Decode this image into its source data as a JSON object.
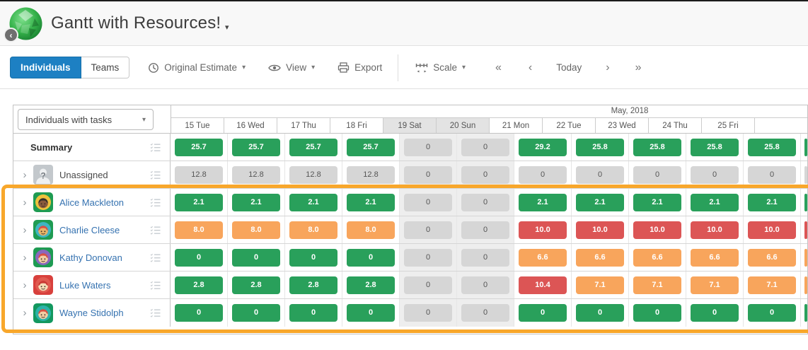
{
  "header": {
    "title": "Gantt with Resources!",
    "collapse_glyph": "‹",
    "title_caret": "▾"
  },
  "toolbar": {
    "view_tabs": [
      {
        "label": "Individuals",
        "active": true
      },
      {
        "label": "Teams",
        "active": false
      }
    ],
    "estimate_label": "Original Estimate",
    "view_label": "View",
    "export_label": "Export",
    "scale_label": "Scale",
    "caret_glyph": "▾",
    "nav": {
      "fast_prev": "«",
      "prev": "‹",
      "today": "Today",
      "next": "›",
      "fast_next": "»"
    }
  },
  "grid": {
    "filter_label": "Individuals with tasks",
    "filter_caret": "▾",
    "month_label": "May, 2018",
    "columns": [
      {
        "label": "15 Tue",
        "weekend": false
      },
      {
        "label": "16 Wed",
        "weekend": false
      },
      {
        "label": "17 Thu",
        "weekend": false
      },
      {
        "label": "18 Fri",
        "weekend": false
      },
      {
        "label": "19 Sat",
        "weekend": true
      },
      {
        "label": "20 Sun",
        "weekend": true
      },
      {
        "label": "21 Mon",
        "weekend": false
      },
      {
        "label": "22 Tue",
        "weekend": false
      },
      {
        "label": "23 Wed",
        "weekend": false
      },
      {
        "label": "24 Thu",
        "weekend": false
      },
      {
        "label": "25 Fri",
        "weekend": false
      }
    ],
    "colors": {
      "green": "#29a05b",
      "orange": "#f8a55c",
      "red": "#dc5555",
      "gray": "#d6d6d6",
      "highlight_border": "#f8a72b",
      "active_tab_blue": "#1d80c3"
    },
    "rows": [
      {
        "name": "Summary",
        "type": "summary",
        "highlighted": false,
        "cells": [
          [
            "25.7",
            "green"
          ],
          [
            "25.7",
            "green"
          ],
          [
            "25.7",
            "green"
          ],
          [
            "25.7",
            "green"
          ],
          [
            "0",
            "gray"
          ],
          [
            "0",
            "gray"
          ],
          [
            "29.2",
            "green"
          ],
          [
            "25.8",
            "green"
          ],
          [
            "25.8",
            "green"
          ],
          [
            "25.8",
            "green"
          ],
          [
            "25.8",
            "green"
          ]
        ],
        "edge_color": "green"
      },
      {
        "name": "Unassigned",
        "type": "unassigned",
        "highlighted": false,
        "avatar": {
          "unknown": true,
          "square": "#c3c8cc"
        },
        "cells": [
          [
            "12.8",
            "gray"
          ],
          [
            "12.8",
            "gray"
          ],
          [
            "12.8",
            "gray"
          ],
          [
            "12.8",
            "gray"
          ],
          [
            "0",
            "gray"
          ],
          [
            "0",
            "gray"
          ],
          [
            "0",
            "gray"
          ],
          [
            "0",
            "gray"
          ],
          [
            "0",
            "gray"
          ],
          [
            "0",
            "gray"
          ],
          [
            "0",
            "gray"
          ]
        ],
        "edge_color": "gray"
      },
      {
        "name": "Alice Mackleton",
        "type": "user",
        "highlighted": true,
        "avatar": {
          "square": "#1e9b52",
          "circle": "#eec23d",
          "skin": "#8a5a3c",
          "hair": "#36302b"
        },
        "cells": [
          [
            "2.1",
            "green"
          ],
          [
            "2.1",
            "green"
          ],
          [
            "2.1",
            "green"
          ],
          [
            "2.1",
            "green"
          ],
          [
            "0",
            "gray"
          ],
          [
            "0",
            "gray"
          ],
          [
            "2.1",
            "green"
          ],
          [
            "2.1",
            "green"
          ],
          [
            "2.1",
            "green"
          ],
          [
            "2.1",
            "green"
          ],
          [
            "2.1",
            "green"
          ]
        ],
        "edge_color": "green"
      },
      {
        "name": "Charlie Cleese",
        "type": "user",
        "highlighted": true,
        "avatar": {
          "square": "#1e9b52",
          "circle": "#3fb5c2",
          "skin": "#e7b469",
          "hair": "#d94f43"
        },
        "cells": [
          [
            "8.0",
            "orange"
          ],
          [
            "8.0",
            "orange"
          ],
          [
            "8.0",
            "orange"
          ],
          [
            "8.0",
            "orange"
          ],
          [
            "0",
            "gray"
          ],
          [
            "0",
            "gray"
          ],
          [
            "10.0",
            "red"
          ],
          [
            "10.0",
            "red"
          ],
          [
            "10.0",
            "red"
          ],
          [
            "10.0",
            "red"
          ],
          [
            "10.0",
            "red"
          ]
        ],
        "edge_color": "red"
      },
      {
        "name": "Kathy Donovan",
        "type": "user",
        "highlighted": true,
        "avatar": {
          "square": "#1e9b52",
          "circle": "#8a67bd",
          "skin": "#f2cda4",
          "hair": "#d94f43"
        },
        "cells": [
          [
            "0",
            "green"
          ],
          [
            "0",
            "green"
          ],
          [
            "0",
            "green"
          ],
          [
            "0",
            "green"
          ],
          [
            "0",
            "gray"
          ],
          [
            "0",
            "gray"
          ],
          [
            "6.6",
            "orange"
          ],
          [
            "6.6",
            "orange"
          ],
          [
            "6.6",
            "orange"
          ],
          [
            "6.6",
            "orange"
          ],
          [
            "6.6",
            "orange"
          ]
        ],
        "edge_color": "orange"
      },
      {
        "name": "Luke Waters",
        "type": "user",
        "highlighted": true,
        "avatar": {
          "square": "#d8403c",
          "circle": "#e05a50",
          "skin": "#f6ddb7",
          "hair": "#c93a35"
        },
        "cells": [
          [
            "2.8",
            "green"
          ],
          [
            "2.8",
            "green"
          ],
          [
            "2.8",
            "green"
          ],
          [
            "2.8",
            "green"
          ],
          [
            "0",
            "gray"
          ],
          [
            "0",
            "gray"
          ],
          [
            "10.4",
            "red"
          ],
          [
            "7.1",
            "orange"
          ],
          [
            "7.1",
            "orange"
          ],
          [
            "7.1",
            "orange"
          ],
          [
            "7.1",
            "orange"
          ]
        ],
        "edge_color": "orange"
      },
      {
        "name": "Wayne Stidolph",
        "type": "user",
        "highlighted": true,
        "avatar": {
          "square": "#13985f",
          "circle": "#2cb3a9",
          "skin": "#f2cda4",
          "hair": "#d94f43"
        },
        "cells": [
          [
            "0",
            "green"
          ],
          [
            "0",
            "green"
          ],
          [
            "0",
            "green"
          ],
          [
            "0",
            "green"
          ],
          [
            "0",
            "gray"
          ],
          [
            "0",
            "gray"
          ],
          [
            "0",
            "green"
          ],
          [
            "0",
            "green"
          ],
          [
            "0",
            "green"
          ],
          [
            "0",
            "green"
          ],
          [
            "0",
            "green"
          ]
        ],
        "edge_color": "green"
      }
    ]
  }
}
